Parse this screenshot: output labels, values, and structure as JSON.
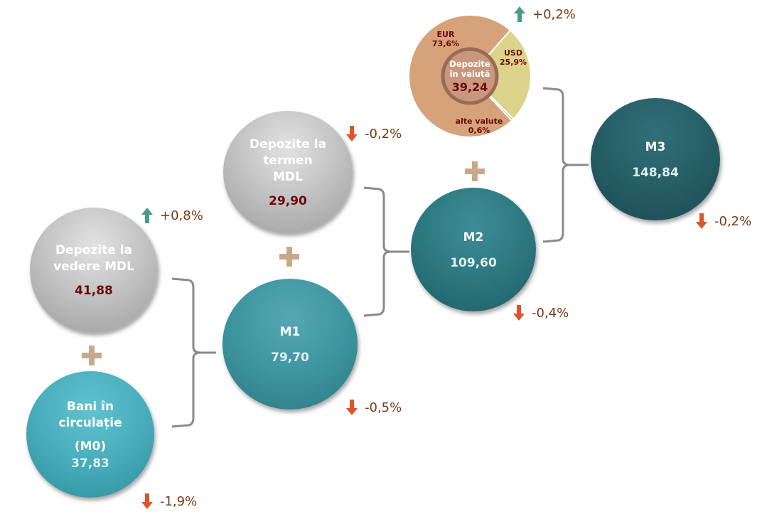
{
  "nodes": {
    "depozite_vedere": {
      "title": [
        "Depozite la",
        "vedere MDL"
      ],
      "value": "41,88",
      "change": "+0,8%",
      "direction": "up"
    },
    "bani_circulatie": {
      "title": [
        "Bani în",
        "circulație"
      ],
      "subtitle": "(M0)",
      "value": "37,83",
      "change": "-1,9%",
      "direction": "down"
    },
    "m1": {
      "title": "M1",
      "value": "79,70",
      "change": "-0,5%",
      "direction": "down"
    },
    "depozite_termen": {
      "title": [
        "Depozite la",
        "termen",
        "MDL"
      ],
      "value": "29,90",
      "change": "-0,2%",
      "direction": "down"
    },
    "m2": {
      "title": "M2",
      "value": "109,60",
      "change": "-0,4%",
      "direction": "down"
    },
    "depozite_valuta": {
      "title": [
        "Depozite",
        "în valută"
      ],
      "value": "39,24",
      "change": "+0,2%",
      "direction": "up",
      "breakdown": [
        {
          "label": "EUR",
          "share": "73,6%",
          "percent": 73.6,
          "color": "#d6a27a"
        },
        {
          "label": "USD",
          "share": "25,9%",
          "percent": 25.9,
          "color": "#dcd48a"
        },
        {
          "label": "alte valute",
          "share": "0,6%",
          "percent": 0.6,
          "color": "#a8a8a8"
        }
      ]
    },
    "m3": {
      "title": "M3",
      "value": "148,84",
      "change": "-0,2%",
      "direction": "down"
    }
  },
  "colors": {
    "up": "#4a9b86",
    "down": "#e0532b",
    "plus": "#c9a98a",
    "bracket": "#8a8a8a",
    "change_text": "#7a3a12"
  },
  "icons": {
    "up": "arrow-up-icon",
    "down": "arrow-down-icon",
    "plus": "plus-icon"
  }
}
